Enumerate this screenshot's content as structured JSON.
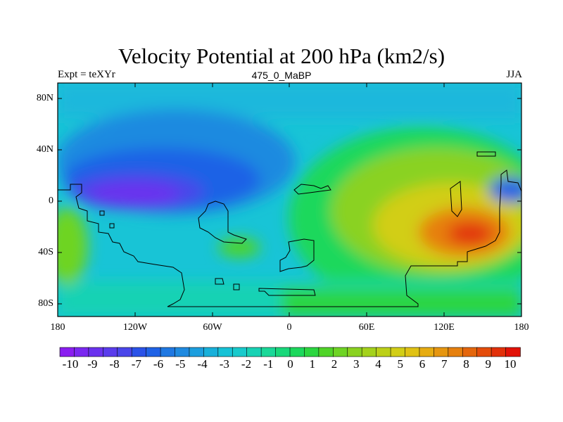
{
  "title": "Velocity Potential at 200 hPa (km2/s)",
  "subtitle_left": "Expt = teXYr",
  "subtitle_center": "475_0_MaBP",
  "subtitle_right": "JJA",
  "lat_ticks": [
    "80N",
    "40N",
    "0",
    "40S",
    "80S"
  ],
  "lon_ticks": [
    "180",
    "120W",
    "60W",
    "0",
    "60E",
    "120E",
    "180"
  ],
  "colorbar": {
    "labels": [
      "-10",
      "-9",
      "-8",
      "-7",
      "-6",
      "-5",
      "-4",
      "-3",
      "-2",
      "-1",
      "0",
      "1",
      "2",
      "3",
      "4",
      "5",
      "6",
      "7",
      "8",
      "9",
      "10"
    ],
    "colors": [
      "#8a1ef0",
      "#7a28f0",
      "#6a32ee",
      "#5a3cec",
      "#4a46ea",
      "#2a52e8",
      "#1f62e6",
      "#1f78e2",
      "#1f8ae0",
      "#1c9ede",
      "#18b0da",
      "#16c2d6",
      "#18cacc",
      "#18d2b4",
      "#1ad898",
      "#18d87a",
      "#1cd85c",
      "#2cd640",
      "#50d428",
      "#6ed424",
      "#8ad220",
      "#a4d21c",
      "#bcd018",
      "#d2ce16",
      "#e0c214",
      "#e6ac12",
      "#e69610",
      "#e6800e",
      "#e4660c",
      "#e44c0a",
      "#e2300a",
      "#e21208"
    ]
  }
}
